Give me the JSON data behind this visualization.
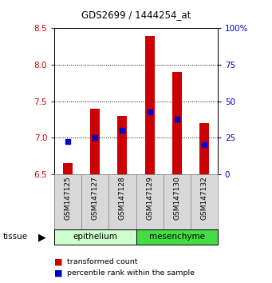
{
  "title": "GDS2699 / 1444254_at",
  "samples": [
    "GSM147125",
    "GSM147127",
    "GSM147128",
    "GSM147129",
    "GSM147130",
    "GSM147132"
  ],
  "transformed_counts": [
    6.65,
    7.4,
    7.3,
    8.4,
    7.9,
    7.2
  ],
  "percentile_ranks": [
    6.95,
    7.0,
    7.1,
    7.35,
    7.25,
    6.9
  ],
  "y_min": 6.5,
  "y_max": 8.5,
  "y_ticks": [
    6.5,
    7.0,
    7.5,
    8.0,
    8.5
  ],
  "right_y_ticks": [
    0,
    25,
    50,
    75,
    100
  ],
  "bar_bottom": 6.5,
  "bar_color": "#cc0000",
  "dot_color": "#0000cc",
  "tissue_groups": [
    {
      "label": "epithelium",
      "samples": [
        "GSM147125",
        "GSM147127",
        "GSM147128"
      ],
      "color": "#ccffcc"
    },
    {
      "label": "mesenchyme",
      "samples": [
        "GSM147129",
        "GSM147130",
        "GSM147132"
      ],
      "color": "#44dd44"
    }
  ],
  "tissue_label": "tissue",
  "legend_items": [
    {
      "label": "transformed count",
      "color": "#cc0000"
    },
    {
      "label": "percentile rank within the sample",
      "color": "#0000cc"
    }
  ],
  "left_ylabel_color": "#cc0000",
  "right_ylabel_color": "#0000cc",
  "background_color": "#ffffff",
  "plot_bg_color": "#ffffff",
  "grid_color": "#000000",
  "bar_width": 0.35,
  "figsize": [
    3.41,
    3.54
  ],
  "dpi": 100
}
